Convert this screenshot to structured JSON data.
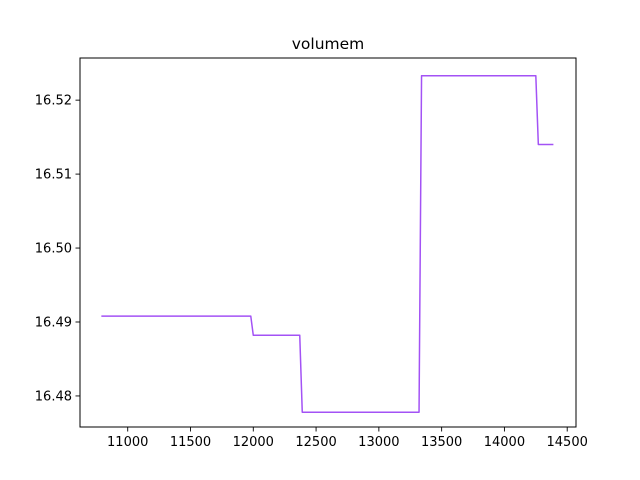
{
  "chart_data": {
    "type": "line",
    "title": "volumem",
    "xlabel": "",
    "ylabel": "",
    "xlim": [
      10620,
      14570
    ],
    "ylim": [
      16.4758,
      16.5257
    ],
    "grid": false,
    "x_ticks": [
      11000,
      11500,
      12000,
      12500,
      13000,
      13500,
      14000,
      14500
    ],
    "x_tick_labels": [
      "11000",
      "11500",
      "12000",
      "12500",
      "13000",
      "13500",
      "14000",
      "14500"
    ],
    "y_ticks": [
      16.48,
      16.49,
      16.5,
      16.51,
      16.52
    ],
    "y_tick_labels": [
      "16.48",
      "16.49",
      "16.50",
      "16.51",
      "16.52"
    ],
    "series": [
      {
        "color": "#a352f5",
        "x": [
          10790,
          11980,
          12000,
          12370,
          12390,
          13320,
          13340,
          14250,
          14270,
          14390
        ],
        "y": [
          16.4908,
          16.4908,
          16.4882,
          16.4882,
          16.4778,
          16.4778,
          16.5233,
          16.5233,
          16.514,
          16.514
        ]
      }
    ]
  }
}
